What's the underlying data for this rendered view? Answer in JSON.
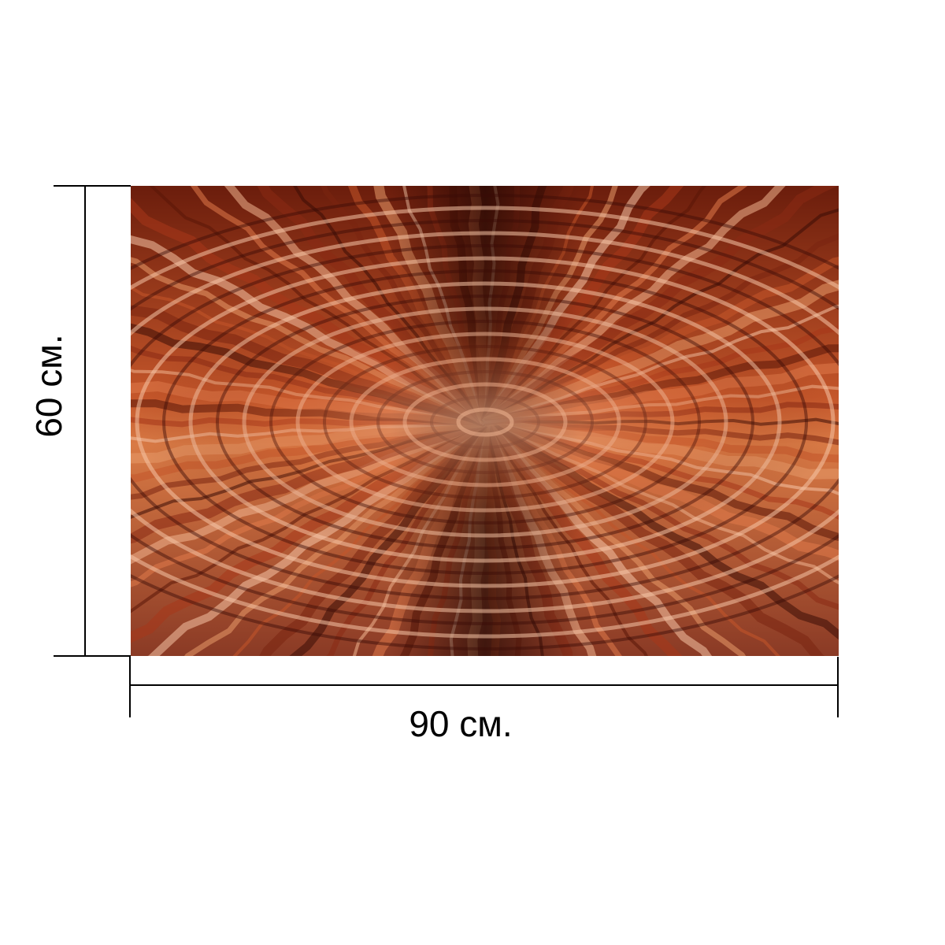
{
  "product": {
    "image_description_icon": "abstract-copper-ripple-print-icon"
  },
  "dimensions": {
    "width_label": "90 см.",
    "height_label": "60 см."
  },
  "colors": {
    "ink": "#000000",
    "background": "#ffffff",
    "print_dark": "#2a0804",
    "print_mid": "#b5431c",
    "print_light": "#f0b58f"
  }
}
